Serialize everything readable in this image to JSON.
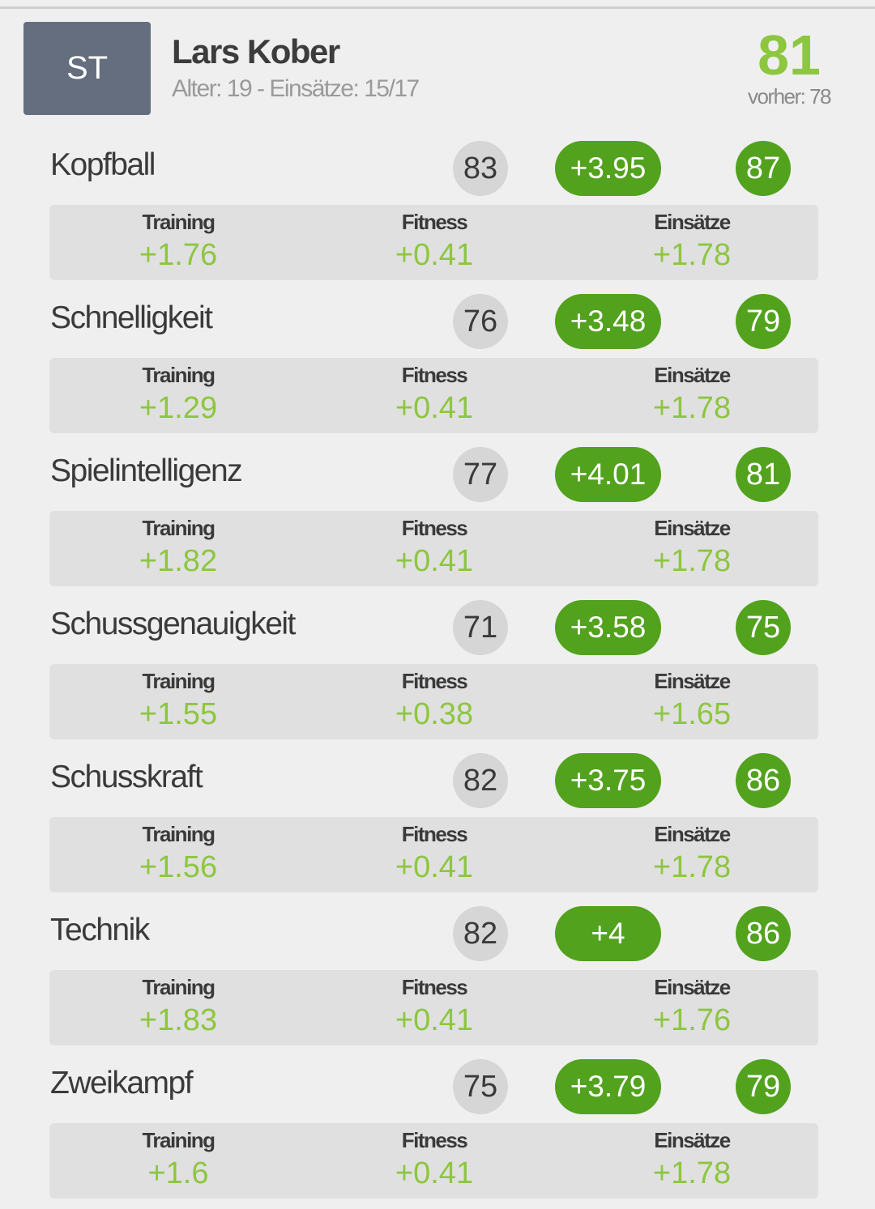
{
  "player": {
    "position": "ST",
    "name": "Lars Kober",
    "meta": "Alter: 19 - Einsätze: 15/17",
    "overall": "81",
    "previous": "vorher: 78"
  },
  "breakdown_labels": {
    "training": "Training",
    "fitness": "Fitness",
    "einsaetze": "Einsätze"
  },
  "attributes": [
    {
      "name": "Kopfball",
      "current": "83",
      "delta": "+3.95",
      "new": "87",
      "training": "+1.76",
      "fitness": "+0.41",
      "einsaetze": "+1.78"
    },
    {
      "name": "Schnelligkeit",
      "current": "76",
      "delta": "+3.48",
      "new": "79",
      "training": "+1.29",
      "fitness": "+0.41",
      "einsaetze": "+1.78"
    },
    {
      "name": "Spielintelligenz",
      "current": "77",
      "delta": "+4.01",
      "new": "81",
      "training": "+1.82",
      "fitness": "+0.41",
      "einsaetze": "+1.78"
    },
    {
      "name": "Schussgenauigkeit",
      "current": "71",
      "delta": "+3.58",
      "new": "75",
      "training": "+1.55",
      "fitness": "+0.38",
      "einsaetze": "+1.65"
    },
    {
      "name": "Schusskraft",
      "current": "82",
      "delta": "+3.75",
      "new": "86",
      "training": "+1.56",
      "fitness": "+0.41",
      "einsaetze": "+1.78"
    },
    {
      "name": "Technik",
      "current": "82",
      "delta": "+4",
      "new": "86",
      "training": "+1.83",
      "fitness": "+0.41",
      "einsaetze": "+1.76"
    },
    {
      "name": "Zweikampf",
      "current": "75",
      "delta": "+3.79",
      "new": "79",
      "training": "+1.6",
      "fitness": "+0.41",
      "einsaetze": "+1.78"
    }
  ],
  "colors": {
    "accent_green": "#52a21e",
    "value_green": "#8dc63f",
    "position_badge": "#646e7e"
  }
}
